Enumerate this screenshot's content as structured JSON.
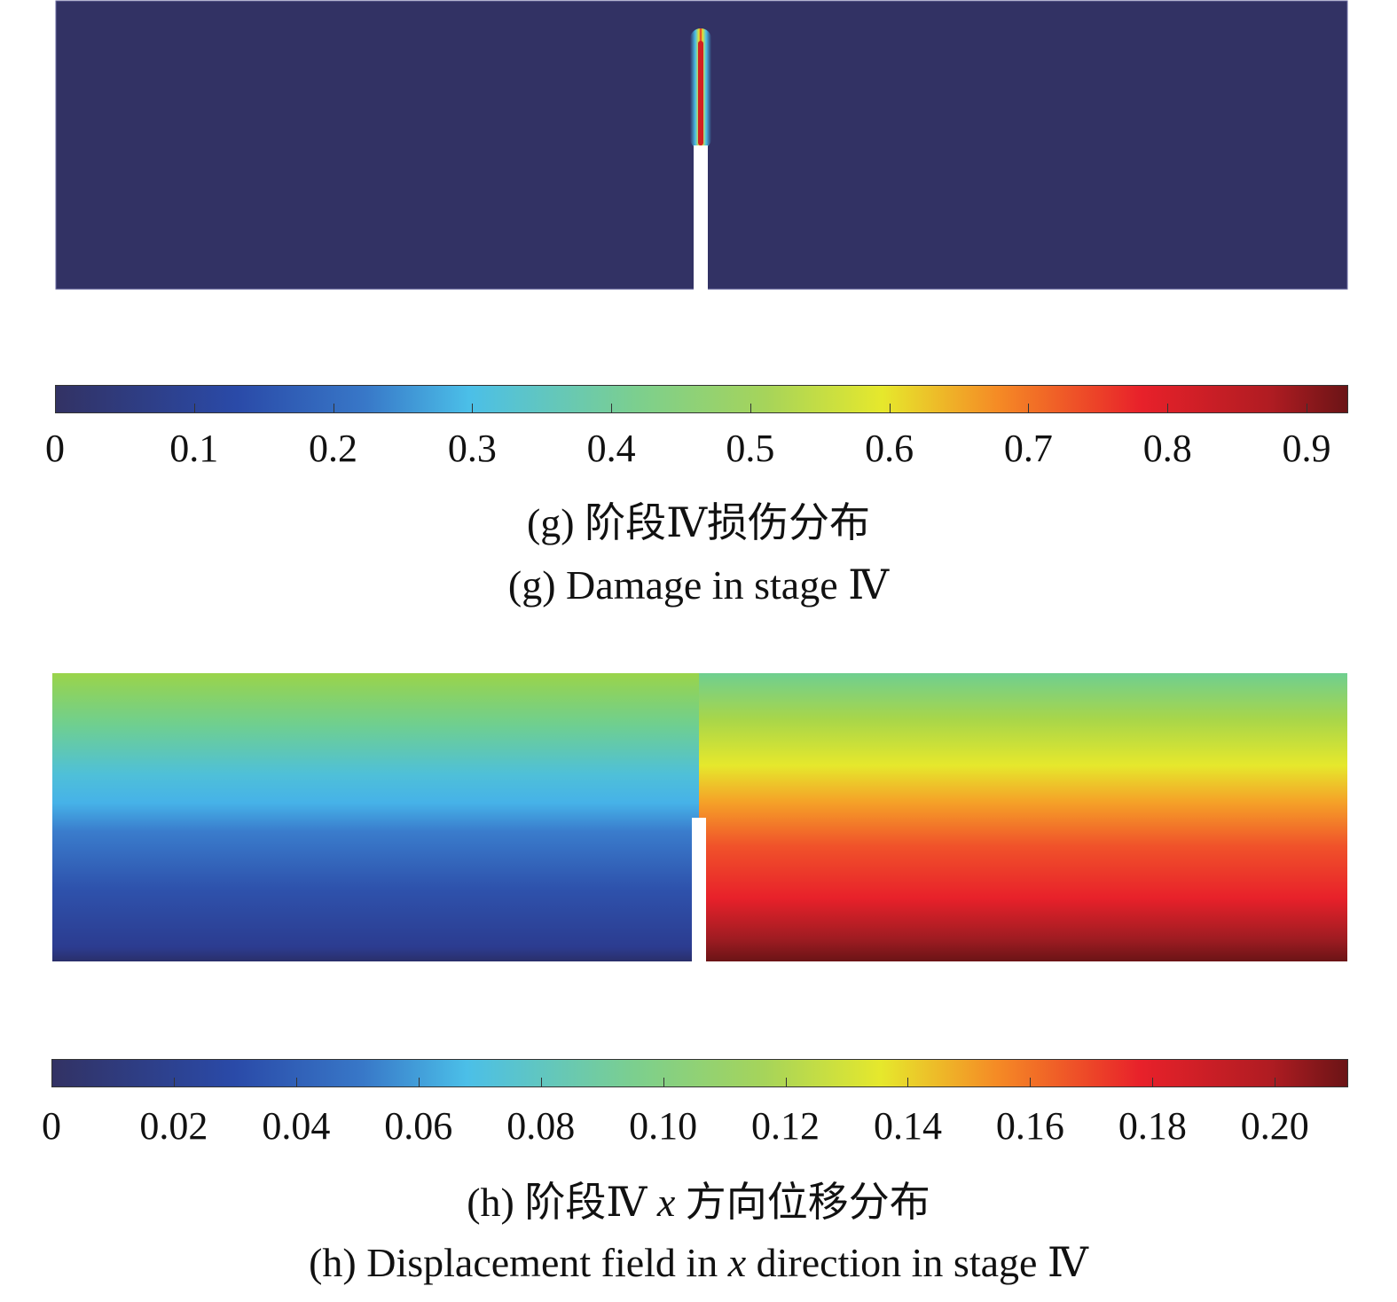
{
  "figures": [
    {
      "id": "g",
      "caption_cn_prefix": "(g) 阶段Ⅳ损伤分布",
      "caption_en": "(g) Damage in stage Ⅳ",
      "colors": {
        "background": "#323264",
        "notch": "#ffffff"
      },
      "chart_data": {
        "type": "heatmap",
        "quantity": "damage",
        "colormap": [
          "#323264",
          "#2a4aa8",
          "#4bbfe8",
          "#7ccf8e",
          "#e6e82c",
          "#f58a25",
          "#e8212a",
          "#6b1416"
        ],
        "colorbar_range": [
          0,
          0.93
        ],
        "colorbar_ticks": [
          "0",
          "0.1",
          "0.2",
          "0.3",
          "0.4",
          "0.5",
          "0.6",
          "0.7",
          "0.8",
          "0.9"
        ],
        "tick_values": [
          0,
          0.1,
          0.2,
          0.3,
          0.4,
          0.5,
          0.6,
          0.7,
          0.8,
          0.9
        ]
      }
    },
    {
      "id": "h",
      "caption_cn_prefix": "(h) 阶段Ⅳ ",
      "caption_cn_var": "x",
      "caption_cn_suffix": " 方向位移分布",
      "caption_en_prefix": "(h) Displacement field in ",
      "caption_en_var": "x",
      "caption_en_suffix": " direction in stage Ⅳ",
      "colors": {
        "notch": "#ffffff"
      },
      "chart_data": {
        "type": "heatmap",
        "quantity": "x-displacement",
        "colormap": [
          "#323264",
          "#2a4aa8",
          "#4bbfe8",
          "#7ccf8e",
          "#e6e82c",
          "#f58a25",
          "#e8212a",
          "#6b1416"
        ],
        "colorbar_range": [
          0,
          0.212
        ],
        "colorbar_ticks": [
          "0",
          "0.02",
          "0.04",
          "0.06",
          "0.08",
          "0.10",
          "0.12",
          "0.14",
          "0.16",
          "0.18",
          "0.20"
        ],
        "tick_values": [
          0,
          0.02,
          0.04,
          0.06,
          0.08,
          0.1,
          0.12,
          0.14,
          0.16,
          0.18,
          0.2
        ]
      }
    }
  ]
}
